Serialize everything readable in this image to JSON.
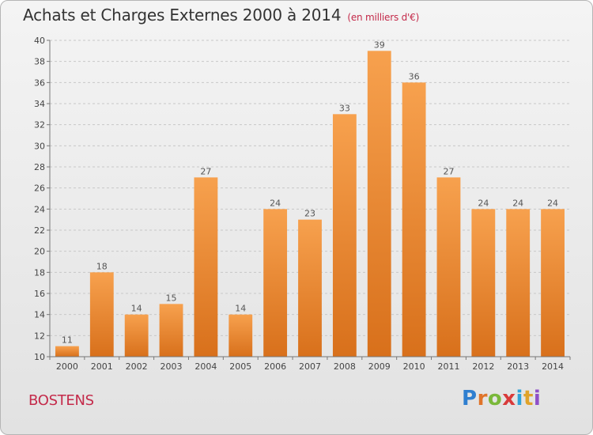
{
  "header": {
    "title": "Achats et Charges Externes 2000 à 2014",
    "unit": "(en milliers d'€)"
  },
  "footer": {
    "commune": "BOSTENS",
    "logo_text": "Proxiti",
    "logo_colors": [
      "#2f7fd0",
      "#e0742a",
      "#7ab83a",
      "#d83a3a",
      "#2fa3d8",
      "#e0a32a",
      "#8f4fc8"
    ]
  },
  "chart_data": {
    "type": "bar",
    "categories": [
      "2000",
      "2001",
      "2002",
      "2003",
      "2004",
      "2005",
      "2006",
      "2007",
      "2008",
      "2009",
      "2010",
      "2011",
      "2012",
      "2013",
      "2014"
    ],
    "values": [
      11,
      18,
      14,
      15,
      27,
      14,
      24,
      23,
      33,
      39,
      36,
      27,
      24,
      24,
      24
    ],
    "title": "Achats et Charges Externes 2000 à 2014",
    "ylim": [
      10,
      40
    ],
    "yticks": [
      10,
      12,
      14,
      16,
      18,
      20,
      22,
      24,
      26,
      28,
      30,
      32,
      34,
      36,
      38,
      40
    ],
    "grid": "horizontal-dashed",
    "bar_colors": [
      "#f7a14e",
      "#d8701b"
    ]
  }
}
